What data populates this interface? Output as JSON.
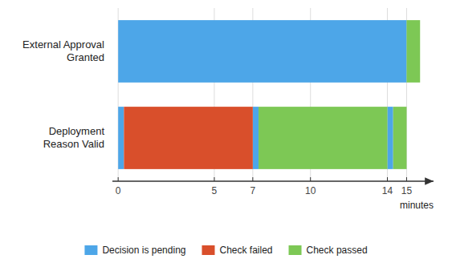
{
  "chart_data": {
    "type": "bar",
    "orientation": "horizontal",
    "stacked": true,
    "categories": [
      "External Approval\nGranted",
      "Deployment\nReason Valid"
    ],
    "series": [
      {
        "name": "Decision is pending",
        "color": "#4DA6E8",
        "values": [
          [
            [
              0,
              15
            ]
          ],
          [
            [
              0,
              0.3
            ],
            [
              7,
              7.3
            ],
            [
              14,
              14.3
            ]
          ]
        ]
      },
      {
        "name": "Check failed",
        "color": "#D94F2B",
        "values": [
          [],
          [
            [
              0.3,
              7
            ]
          ]
        ]
      },
      {
        "name": "Check passed",
        "color": "#7DC855",
        "values": [
          [
            [
              15,
              15.7
            ]
          ],
          [
            [
              7.3,
              14
            ],
            [
              14.3,
              15
            ]
          ]
        ]
      }
    ],
    "x_label": "minutes",
    "xlim": [
      -0.3,
      16.4
    ],
    "xticks": [
      0,
      5,
      7,
      10,
      14,
      15
    ],
    "grid": true,
    "legend": "bottom"
  }
}
